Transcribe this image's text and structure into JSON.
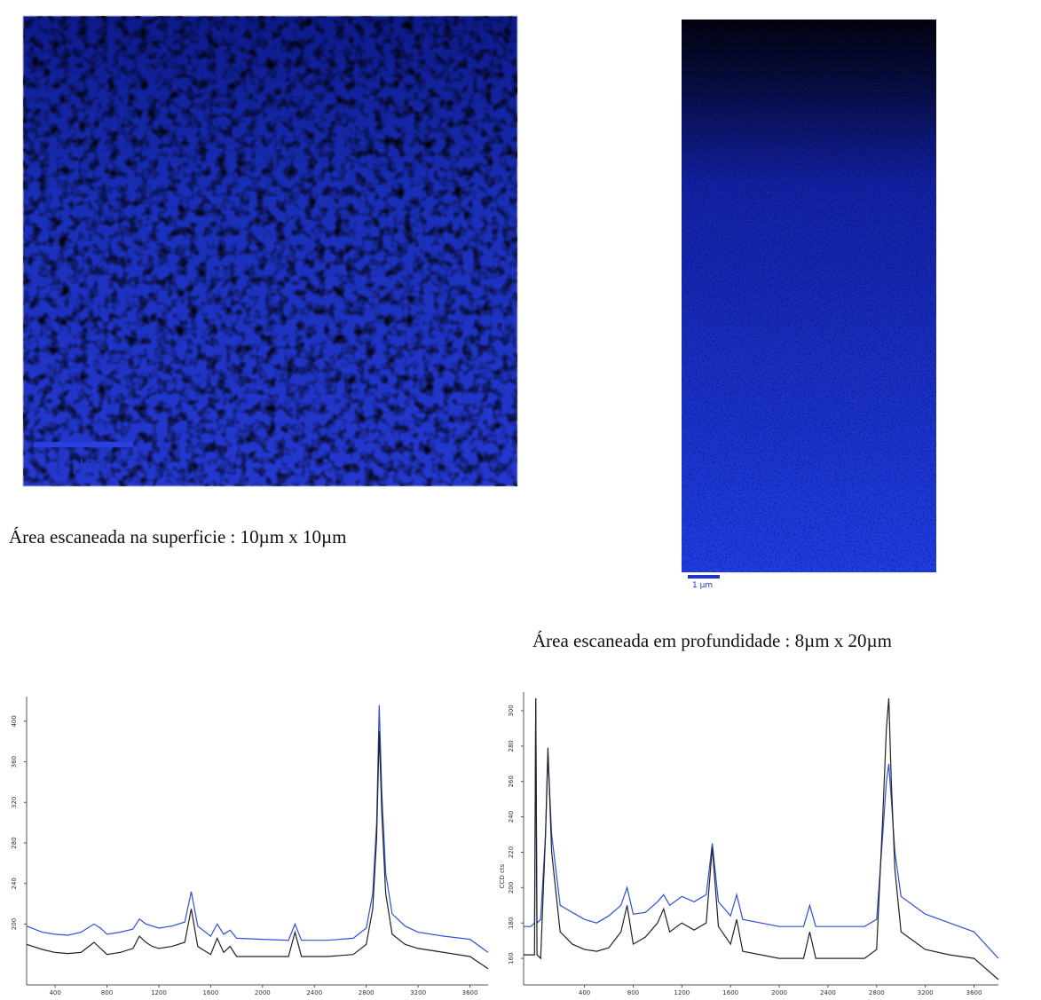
{
  "images": [
    {
      "scale_bar": "2 µm",
      "caption": "Área escaneada na superficie : 10µm x 10µm"
    },
    {
      "scale_bar": "1 µm",
      "caption": "Área escaneada em profundidade : 8µm x 20µm"
    }
  ],
  "chart_data": [
    {
      "type": "line",
      "x": [
        180,
        300,
        400,
        500,
        600,
        700,
        750,
        800,
        900,
        1000,
        1050,
        1100,
        1150,
        1200,
        1300,
        1400,
        1450,
        1500,
        1600,
        1650,
        1700,
        1750,
        1800,
        2000,
        2200,
        2250,
        2300,
        2500,
        2700,
        2800,
        2850,
        2880,
        2900,
        2920,
        2950,
        3000,
        3100,
        3200,
        3400,
        3600,
        3740
      ],
      "series": [
        {
          "color": "#2f4fd8",
          "values": [
            198,
            192,
            190,
            189,
            192,
            200,
            196,
            190,
            192,
            195,
            205,
            200,
            198,
            196,
            198,
            202,
            232,
            198,
            188,
            200,
            190,
            194,
            186,
            185,
            184,
            200,
            184,
            184,
            186,
            196,
            230,
            300,
            416,
            330,
            250,
            210,
            198,
            192,
            188,
            185,
            172
          ]
        },
        {
          "color": "#222222",
          "values": [
            180,
            175,
            172,
            171,
            172,
            182,
            176,
            170,
            172,
            176,
            188,
            182,
            178,
            176,
            178,
            182,
            215,
            178,
            170,
            186,
            172,
            178,
            168,
            168,
            168,
            192,
            168,
            168,
            170,
            180,
            215,
            285,
            390,
            310,
            230,
            190,
            180,
            176,
            172,
            168,
            156
          ]
        }
      ],
      "xlim": [
        180,
        3740
      ],
      "xticks": [
        400,
        800,
        1200,
        1600,
        2000,
        2400,
        2800,
        3200,
        3600
      ],
      "ylim": [
        140,
        420
      ],
      "yticks": [
        200,
        240,
        280,
        320,
        360,
        400
      ]
    },
    {
      "type": "line",
      "y_label": "CCD cts",
      "x": [
        -100,
        -40,
        -10,
        0,
        10,
        40,
        80,
        100,
        130,
        200,
        300,
        400,
        500,
        600,
        700,
        750,
        800,
        900,
        1000,
        1050,
        1100,
        1200,
        1300,
        1400,
        1450,
        1500,
        1600,
        1650,
        1700,
        2000,
        2200,
        2250,
        2300,
        2500,
        2700,
        2800,
        2850,
        2880,
        2900,
        2920,
        2950,
        3000,
        3200,
        3400,
        3600,
        3800
      ],
      "series": [
        {
          "color": "#2f4fd8",
          "values": [
            178,
            178,
            180,
            307,
            180,
            182,
            230,
            275,
            230,
            190,
            186,
            182,
            180,
            184,
            190,
            200,
            185,
            186,
            192,
            196,
            190,
            195,
            192,
            196,
            225,
            192,
            184,
            196,
            182,
            178,
            178,
            190,
            178,
            178,
            178,
            182,
            230,
            260,
            270,
            250,
            220,
            195,
            185,
            180,
            175,
            160
          ]
        },
        {
          "color": "#222222",
          "values": [
            162,
            162,
            162,
            307,
            162,
            160,
            230,
            279,
            220,
            175,
            168,
            165,
            164,
            166,
            175,
            190,
            168,
            172,
            180,
            188,
            175,
            180,
            176,
            180,
            223,
            178,
            168,
            182,
            164,
            160,
            160,
            175,
            160,
            160,
            160,
            165,
            240,
            290,
            307,
            260,
            210,
            175,
            165,
            162,
            160,
            148
          ]
        }
      ],
      "xlim": [
        -100,
        3800
      ],
      "xticks": [
        400,
        800,
        1200,
        1600,
        2000,
        2400,
        2800,
        3200,
        3600
      ],
      "ylim": [
        145,
        308
      ],
      "yticks": [
        160,
        180,
        200,
        220,
        240,
        260,
        280,
        300
      ]
    }
  ]
}
